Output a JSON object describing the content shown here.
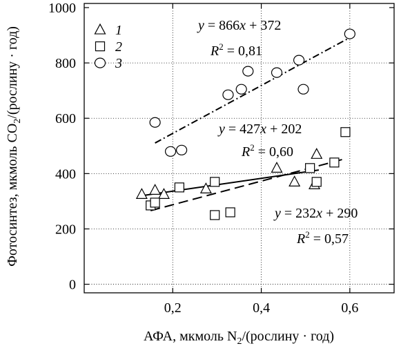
{
  "chart_data": {
    "type": "scatter",
    "xlabel": "АФА, мкмоль N2/(рослину · год)",
    "ylabel": "Фотосинтез, мкмоль CO2/(рослину · год)",
    "xlim": [
      0,
      0.7
    ],
    "ylim": [
      0,
      1000
    ],
    "x_ticks": [
      "0,2",
      "0,4",
      "0,6"
    ],
    "y_ticks": [
      "0",
      "200",
      "400",
      "600",
      "800",
      "1000"
    ],
    "grid": "dotted",
    "legend_position": "top-left",
    "series": [
      {
        "name": "1",
        "marker": "triangle",
        "points": [
          [
            0.13,
            325
          ],
          [
            0.16,
            340
          ],
          [
            0.18,
            325
          ],
          [
            0.275,
            345
          ],
          [
            0.435,
            420
          ],
          [
            0.475,
            370
          ],
          [
            0.52,
            360
          ],
          [
            0.525,
            470
          ]
        ],
        "fit": {
          "equation": "y = 232x + 290",
          "r2": "R² = 0,57",
          "x_range": [
            0.13,
            0.53
          ],
          "line_style": "solid"
        }
      },
      {
        "name": "2",
        "marker": "square",
        "points": [
          [
            0.15,
            285
          ],
          [
            0.16,
            295
          ],
          [
            0.215,
            350
          ],
          [
            0.295,
            250
          ],
          [
            0.295,
            370
          ],
          [
            0.33,
            260
          ],
          [
            0.51,
            420
          ],
          [
            0.525,
            370
          ],
          [
            0.565,
            440
          ],
          [
            0.59,
            550
          ]
        ],
        "fit": {
          "equation": "y = 427x + 202",
          "r2": "R² = 0,60",
          "x_range": [
            0.15,
            0.59
          ],
          "line_style": "dashed"
        }
      },
      {
        "name": "3",
        "marker": "circle",
        "points": [
          [
            0.16,
            585
          ],
          [
            0.195,
            480
          ],
          [
            0.22,
            485
          ],
          [
            0.325,
            685
          ],
          [
            0.355,
            705
          ],
          [
            0.37,
            770
          ],
          [
            0.435,
            765
          ],
          [
            0.485,
            810
          ],
          [
            0.495,
            705
          ],
          [
            0.6,
            905
          ]
        ],
        "fit": {
          "equation": "y = 866x + 372",
          "r2": "R² = 0,81",
          "x_range": [
            0.16,
            0.6
          ],
          "line_style": "dashdot"
        }
      }
    ]
  }
}
